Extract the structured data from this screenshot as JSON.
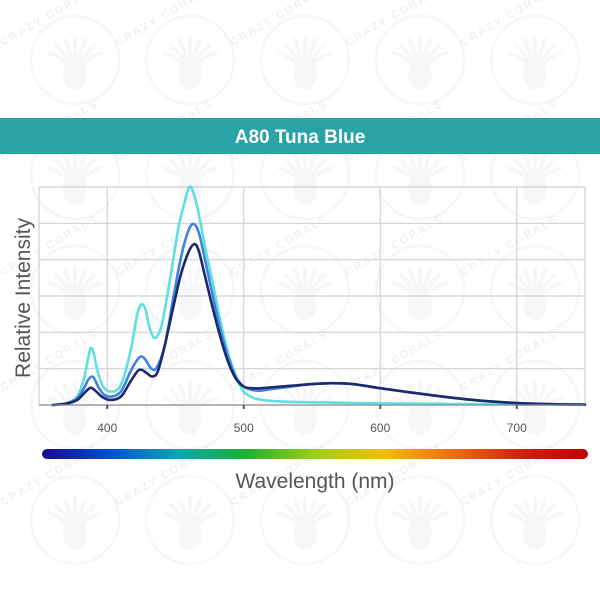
{
  "watermark": {
    "text": "CRAZY CORALS",
    "color": "#b0b0b0"
  },
  "chart_data": {
    "type": "line",
    "title": "A80 Tuna Blue",
    "xlabel": "Wavelength (nm)",
    "ylabel": "Relative Intensity",
    "xlim": [
      350,
      750
    ],
    "ylim": [
      0,
      1.3
    ],
    "xticks": [
      400,
      500,
      600,
      700
    ],
    "grid": true,
    "legend": "none",
    "title_bar_color": "#2aa3a6",
    "grid_color": "#cfd3d6",
    "spectrum_bar": [
      "#1a0a8c",
      "#0050d0",
      "#00a8b0",
      "#20b030",
      "#a0d010",
      "#f0c000",
      "#f07010",
      "#d42010",
      "#c00000"
    ],
    "series": [
      {
        "color": "#5ce0e0",
        "x": [
          360,
          370,
          378,
          383,
          386,
          388,
          390,
          393,
          397,
          403,
          410,
          417,
          422,
          425,
          428,
          431,
          435,
          440,
          446,
          452,
          457,
          460,
          463,
          467,
          472,
          478,
          484,
          490,
          496,
          500,
          505,
          510,
          520,
          530,
          545,
          560,
          580,
          600,
          625,
          650,
          675,
          700,
          725,
          750
        ],
        "y": [
          0,
          0.01,
          0.05,
          0.16,
          0.28,
          0.34,
          0.31,
          0.2,
          0.11,
          0.08,
          0.12,
          0.32,
          0.54,
          0.6,
          0.57,
          0.46,
          0.4,
          0.48,
          0.75,
          1.05,
          1.22,
          1.3,
          1.27,
          1.14,
          0.93,
          0.7,
          0.46,
          0.27,
          0.14,
          0.08,
          0.05,
          0.035,
          0.025,
          0.02,
          0.017,
          0.015,
          0.012,
          0.01,
          0.008,
          0.006,
          0.004,
          0.003,
          0.002,
          0.001
        ]
      },
      {
        "color": "#3f82e0",
        "x": [
          360,
          370,
          378,
          383,
          386,
          389,
          391,
          394,
          398,
          403,
          410,
          417,
          422,
          425,
          428,
          432,
          436,
          442,
          448,
          454,
          459,
          463,
          467,
          471,
          476,
          482,
          488,
          494,
          500,
          506,
          512,
          520,
          535,
          550,
          565,
          580,
          600,
          625,
          650,
          675,
          700,
          725,
          750
        ],
        "y": [
          0,
          0.01,
          0.04,
          0.1,
          0.15,
          0.17,
          0.15,
          0.1,
          0.06,
          0.05,
          0.08,
          0.2,
          0.27,
          0.29,
          0.27,
          0.22,
          0.22,
          0.35,
          0.62,
          0.88,
          1.03,
          1.08,
          1.03,
          0.89,
          0.7,
          0.48,
          0.3,
          0.17,
          0.11,
          0.09,
          0.085,
          0.095,
          0.11,
          0.125,
          0.13,
          0.125,
          0.1,
          0.072,
          0.046,
          0.025,
          0.012,
          0.005,
          0.002
        ]
      },
      {
        "color": "#1b2a6b",
        "x": [
          360,
          370,
          378,
          383,
          387,
          389,
          392,
          396,
          402,
          410,
          417,
          422,
          425,
          429,
          433,
          437,
          442,
          448,
          454,
          460,
          464,
          467,
          471,
          476,
          482,
          488,
          494,
          500,
          506,
          512,
          520,
          535,
          550,
          565,
          580,
          600,
          625,
          650,
          675,
          700,
          725,
          750
        ],
        "y": [
          0,
          0.008,
          0.03,
          0.07,
          0.1,
          0.1,
          0.08,
          0.05,
          0.03,
          0.05,
          0.14,
          0.2,
          0.21,
          0.19,
          0.17,
          0.2,
          0.35,
          0.57,
          0.78,
          0.92,
          0.96,
          0.92,
          0.79,
          0.62,
          0.43,
          0.27,
          0.16,
          0.11,
          0.1,
          0.1,
          0.105,
          0.115,
          0.125,
          0.13,
          0.125,
          0.1,
          0.072,
          0.046,
          0.025,
          0.012,
          0.005,
          0.002
        ]
      }
    ]
  }
}
